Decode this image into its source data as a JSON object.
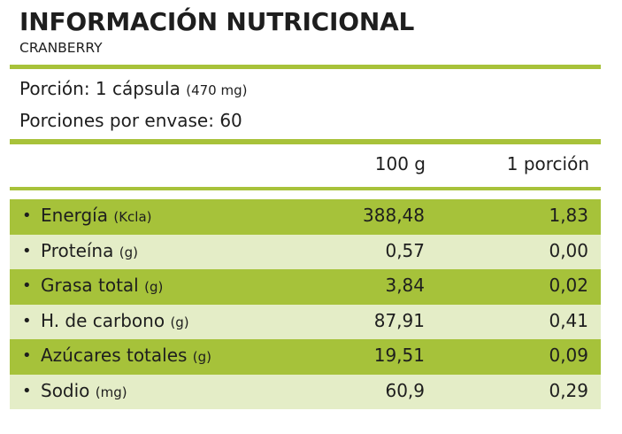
{
  "header": {
    "title": "INFORMACIÓN NUTRICIONAL",
    "subtitle": "CRANBERRY"
  },
  "serving": {
    "portion_label": "Porción: 1 cápsula",
    "portion_weight": "(470 mg)",
    "servings_label": "Porciones por envase: 60"
  },
  "columns": {
    "per_100g": "100 g",
    "per_portion": "1 porción"
  },
  "rows": [
    {
      "bullet": "•",
      "name": "Energía",
      "unit": "(Kcla)",
      "per_100g": "388,48",
      "per_portion": "1,83"
    },
    {
      "bullet": "•",
      "name": "Proteína",
      "unit": "(g)",
      "per_100g": "0,57",
      "per_portion": "0,00"
    },
    {
      "bullet": "•",
      "name": "Grasa total",
      "unit": "(g)",
      "per_100g": "3,84",
      "per_portion": "0,02"
    },
    {
      "bullet": "•",
      "name": "H. de carbono",
      "unit": "(g)",
      "per_100g": "87,91",
      "per_portion": "0,41"
    },
    {
      "bullet": "•",
      "name": "Azúcares totales",
      "unit": "(g)",
      "per_100g": "19,51",
      "per_portion": "0,09"
    },
    {
      "bullet": "•",
      "name": "Sodio",
      "unit": "(mg)",
      "per_100g": "60,9",
      "per_portion": "0,29"
    }
  ],
  "colors": {
    "accent_green": "#a6c23a",
    "light_green": "#e4edc7",
    "text": "#1e1e1e"
  }
}
